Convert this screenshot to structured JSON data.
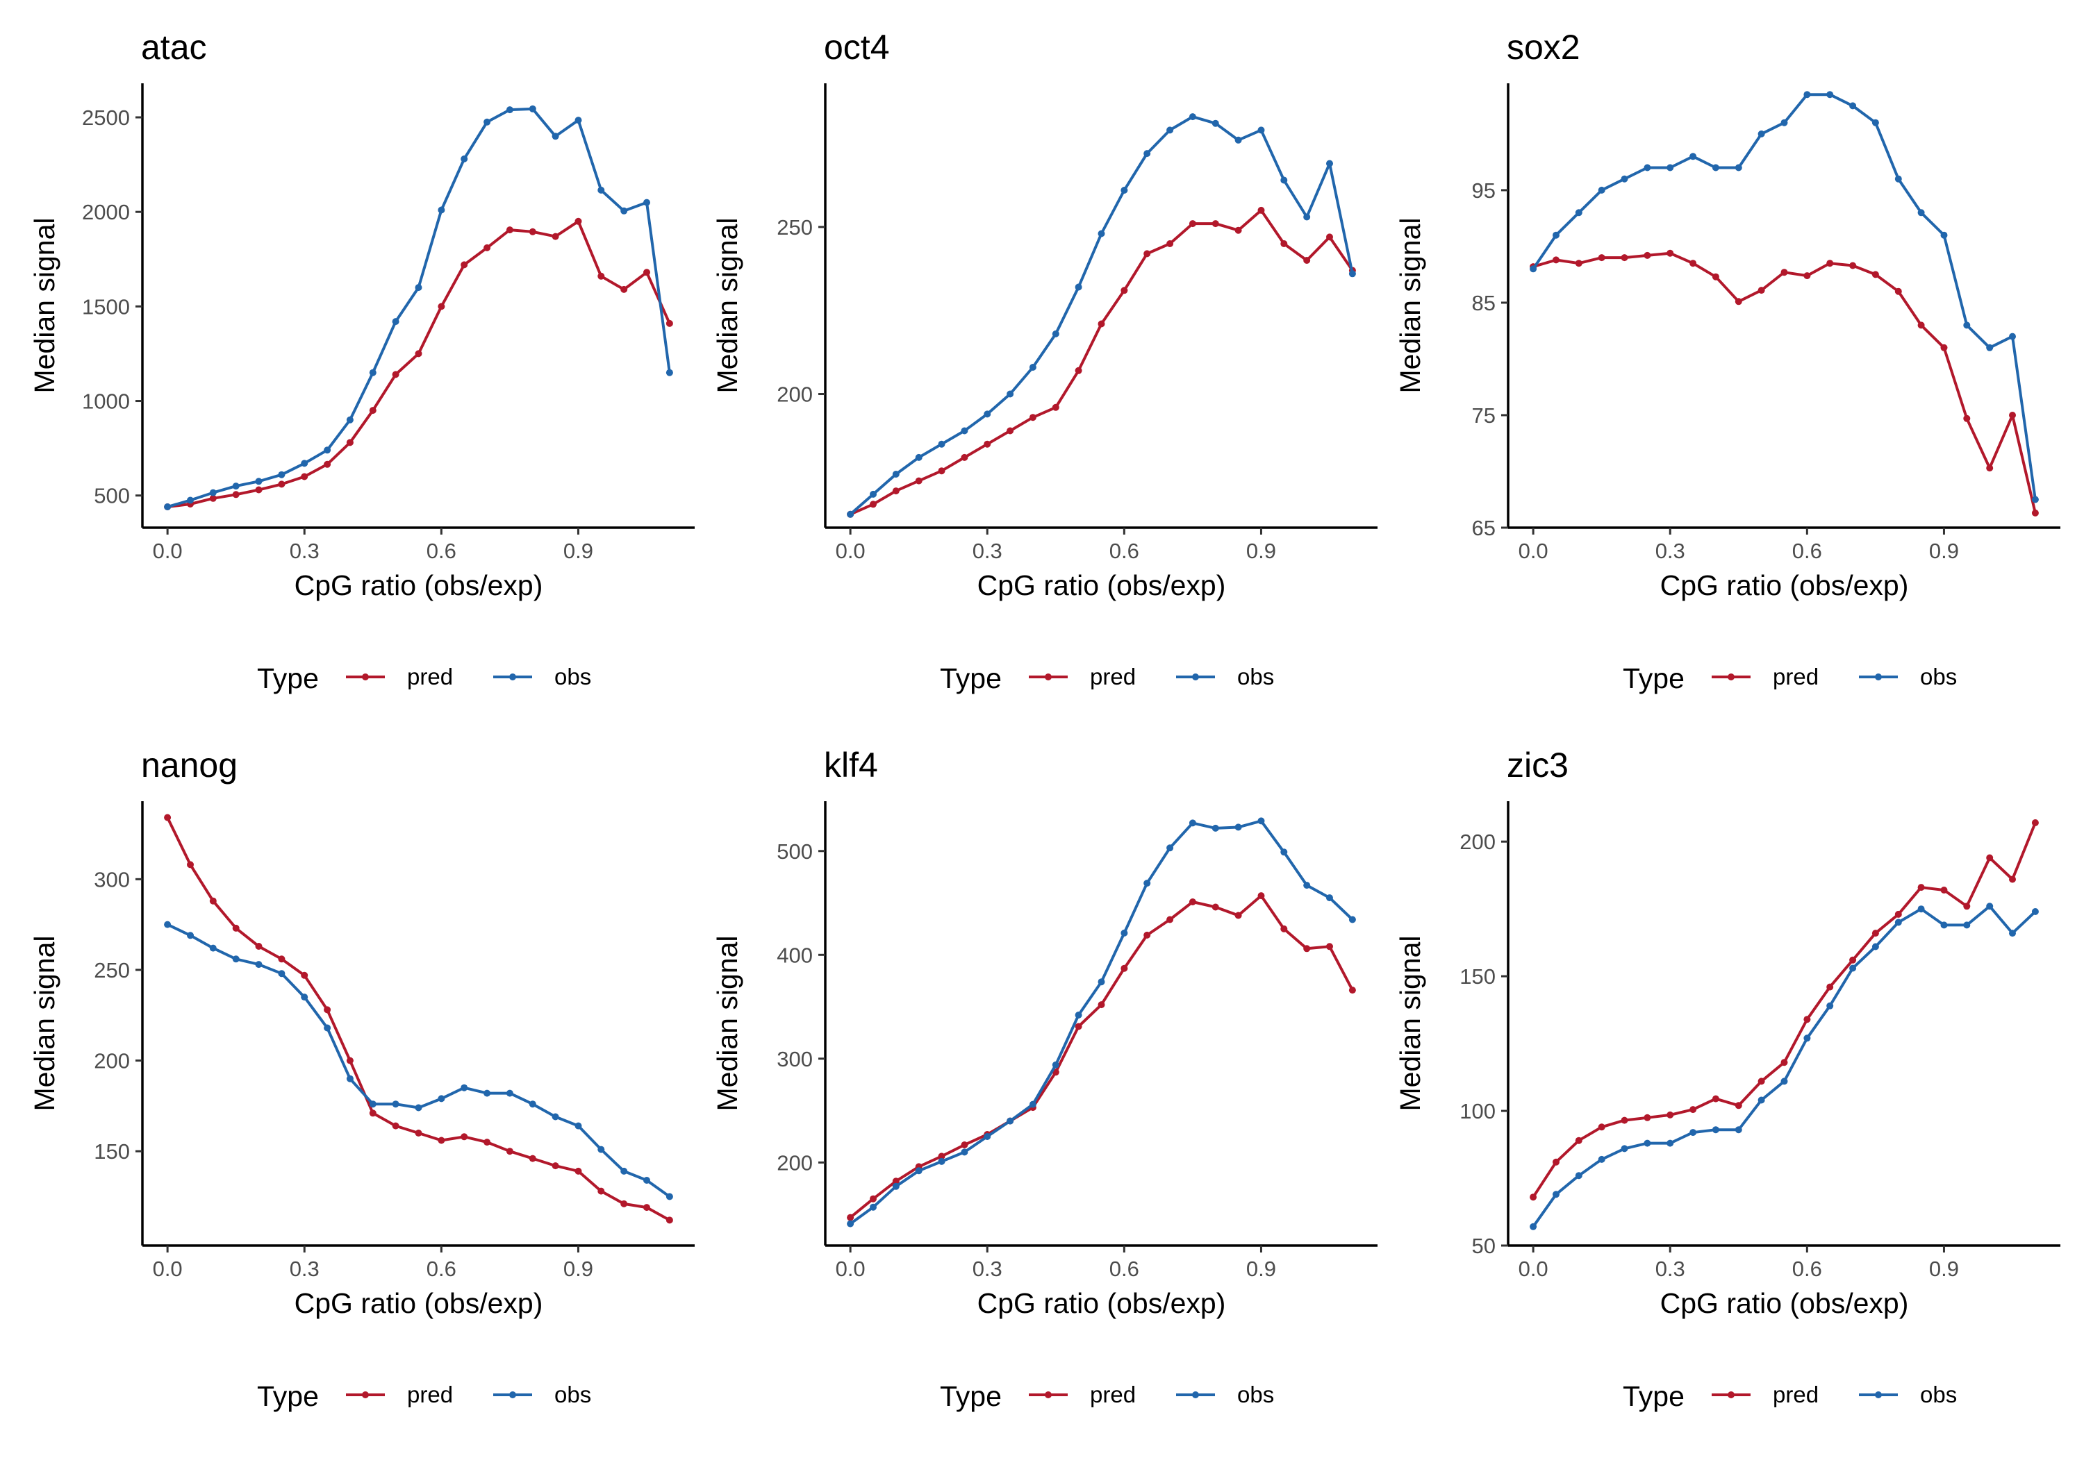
{
  "figure": {
    "series_colors": {
      "pred": "#b2182b",
      "obs": "#2166ac"
    },
    "legend": {
      "title": "Type",
      "items": [
        {
          "key": "pred",
          "label": "pred"
        },
        {
          "key": "obs",
          "label": "obs"
        }
      ]
    }
  },
  "chart_data": [
    {
      "type": "line",
      "title": "atac",
      "xlabel": "CpG ratio (obs/exp)",
      "ylabel": "Median signal",
      "xlim": [
        -0.055,
        1.155
      ],
      "ylim": [
        330,
        2680
      ],
      "xticks": [
        0.0,
        0.3,
        0.6,
        0.9
      ],
      "xtick_labels": [
        "0.0",
        "0.3",
        "0.6",
        "0.9"
      ],
      "yticks": [
        500,
        1000,
        1500,
        2000,
        2500
      ],
      "ytick_labels": [
        "500",
        "1000",
        "1500",
        "2000",
        "2500"
      ],
      "grid": false,
      "legend_position": "bottom",
      "x": [
        0.0,
        0.05,
        0.1,
        0.15,
        0.2,
        0.25,
        0.3,
        0.35,
        0.4,
        0.45,
        0.5,
        0.55,
        0.6,
        0.65,
        0.7,
        0.75,
        0.8,
        0.85,
        0.9,
        0.95,
        1.0,
        1.05,
        1.1
      ],
      "series": [
        {
          "name": "pred",
          "values": [
            440,
            455,
            485,
            505,
            530,
            560,
            600,
            665,
            780,
            950,
            1140,
            1250,
            1500,
            1720,
            1810,
            1905,
            1895,
            1870,
            1950,
            1660,
            1590,
            1680,
            1410
          ]
        },
        {
          "name": "obs",
          "values": [
            440,
            475,
            515,
            550,
            575,
            610,
            670,
            740,
            900,
            1150,
            1420,
            1600,
            2010,
            2280,
            2475,
            2540,
            2545,
            2400,
            2485,
            2115,
            2005,
            2050,
            1150
          ]
        }
      ]
    },
    {
      "type": "line",
      "title": "oct4",
      "xlabel": "CpG ratio (obs/exp)",
      "ylabel": "Median signal",
      "xlim": [
        -0.055,
        1.155
      ],
      "ylim": [
        160,
        293
      ],
      "xticks": [
        0.0,
        0.3,
        0.6,
        0.9
      ],
      "xtick_labels": [
        "0.0",
        "0.3",
        "0.6",
        "0.9"
      ],
      "yticks": [
        200,
        250
      ],
      "ytick_labels": [
        "200",
        "250"
      ],
      "grid": false,
      "legend_position": "bottom",
      "x": [
        0.0,
        0.05,
        0.1,
        0.15,
        0.2,
        0.25,
        0.3,
        0.35,
        0.4,
        0.45,
        0.5,
        0.55,
        0.6,
        0.65,
        0.7,
        0.75,
        0.8,
        0.85,
        0.9,
        0.95,
        1.0,
        1.05,
        1.1
      ],
      "series": [
        {
          "name": "pred",
          "values": [
            164,
            167,
            171,
            174,
            177,
            181,
            185,
            189,
            193,
            196,
            207,
            221,
            231,
            242,
            245,
            251,
            251,
            249,
            255,
            245,
            240,
            247,
            237
          ]
        },
        {
          "name": "obs",
          "values": [
            164,
            170,
            176,
            181,
            185,
            189,
            194,
            200,
            208,
            218,
            232,
            248,
            261,
            272,
            279,
            283,
            281,
            276,
            279,
            264,
            253,
            269,
            236
          ]
        }
      ]
    },
    {
      "type": "line",
      "title": "sox2",
      "xlabel": "CpG ratio (obs/exp)",
      "ylabel": "Median signal",
      "xlim": [
        -0.055,
        1.155
      ],
      "ylim": [
        65,
        104.5
      ],
      "xticks": [
        0.0,
        0.3,
        0.6,
        0.9
      ],
      "xtick_labels": [
        "0.0",
        "0.3",
        "0.6",
        "0.9"
      ],
      "yticks": [
        65,
        75,
        85,
        95
      ],
      "ytick_labels": [
        "65",
        "75",
        "85",
        "95"
      ],
      "grid": false,
      "legend_position": "bottom",
      "x": [
        0.0,
        0.05,
        0.1,
        0.15,
        0.2,
        0.25,
        0.3,
        0.35,
        0.4,
        0.45,
        0.5,
        0.55,
        0.6,
        0.65,
        0.7,
        0.75,
        0.8,
        0.85,
        0.9,
        0.95,
        1.0,
        1.05,
        1.1
      ],
      "series": [
        {
          "name": "pred",
          "values": [
            88.2,
            88.8,
            88.5,
            89.0,
            89.0,
            89.2,
            89.4,
            88.5,
            87.3,
            85.1,
            86.1,
            87.7,
            87.4,
            88.5,
            88.3,
            87.5,
            86.0,
            83.0,
            81.0,
            74.7,
            70.3,
            75.0,
            66.3
          ]
        },
        {
          "name": "obs",
          "values": [
            88.0,
            91.0,
            93.0,
            95.0,
            96.0,
            97.0,
            97.0,
            98.0,
            97.0,
            97.0,
            100.0,
            101.0,
            103.5,
            103.5,
            102.5,
            101.0,
            96.0,
            93.0,
            91.0,
            83.0,
            81.0,
            82.0,
            67.5
          ]
        }
      ]
    },
    {
      "type": "line",
      "title": "nanog",
      "xlabel": "CpG ratio (obs/exp)",
      "ylabel": "Median signal",
      "xlim": [
        -0.055,
        1.155
      ],
      "ylim": [
        98,
        343
      ],
      "xticks": [
        0.0,
        0.3,
        0.6,
        0.9
      ],
      "xtick_labels": [
        "0.0",
        "0.3",
        "0.6",
        "0.9"
      ],
      "yticks": [
        150,
        200,
        250,
        300
      ],
      "ytick_labels": [
        "150",
        "200",
        "250",
        "300"
      ],
      "grid": false,
      "legend_position": "bottom",
      "x": [
        0.0,
        0.05,
        0.1,
        0.15,
        0.2,
        0.25,
        0.3,
        0.35,
        0.4,
        0.45,
        0.5,
        0.55,
        0.6,
        0.65,
        0.7,
        0.75,
        0.8,
        0.85,
        0.9,
        0.95,
        1.0,
        1.05,
        1.1
      ],
      "series": [
        {
          "name": "pred",
          "values": [
            334,
            308,
            288,
            273,
            263,
            256,
            247,
            228,
            200,
            171,
            164,
            160,
            156,
            158,
            155,
            150,
            146,
            142,
            139,
            128,
            121,
            119,
            112
          ]
        },
        {
          "name": "obs",
          "values": [
            275,
            269,
            262,
            256,
            253,
            248,
            235,
            218,
            190,
            176,
            176,
            174,
            179,
            185,
            182,
            182,
            176,
            169,
            164,
            151,
            139,
            134,
            125
          ]
        }
      ]
    },
    {
      "type": "line",
      "title": "klf4",
      "xlabel": "CpG ratio (obs/exp)",
      "ylabel": "Median signal",
      "xlim": [
        -0.055,
        1.155
      ],
      "ylim": [
        120,
        548
      ],
      "xticks": [
        0.0,
        0.3,
        0.6,
        0.9
      ],
      "xtick_labels": [
        "0.0",
        "0.3",
        "0.6",
        "0.9"
      ],
      "yticks": [
        200,
        300,
        400,
        500
      ],
      "ytick_labels": [
        "200",
        "300",
        "400",
        "500"
      ],
      "grid": false,
      "legend_position": "bottom",
      "x": [
        0.0,
        0.05,
        0.1,
        0.15,
        0.2,
        0.25,
        0.3,
        0.35,
        0.4,
        0.45,
        0.5,
        0.55,
        0.6,
        0.65,
        0.7,
        0.75,
        0.8,
        0.85,
        0.9,
        0.95,
        1.0,
        1.05,
        1.1
      ],
      "series": [
        {
          "name": "pred",
          "values": [
            147,
            165,
            182,
            196,
            206,
            217,
            227,
            240,
            253,
            287,
            331,
            352,
            387,
            419,
            434,
            451,
            446,
            438,
            457,
            425,
            406,
            408,
            366
          ]
        },
        {
          "name": "obs",
          "values": [
            141,
            157,
            177,
            192,
            201,
            210,
            225,
            240,
            256,
            294,
            342,
            374,
            421,
            469,
            503,
            527,
            522,
            523,
            529,
            499,
            467,
            455,
            434
          ]
        }
      ]
    },
    {
      "type": "line",
      "title": "zic3",
      "xlabel": "CpG ratio (obs/exp)",
      "ylabel": "Median signal",
      "xlim": [
        -0.055,
        1.155
      ],
      "ylim": [
        50,
        215
      ],
      "xticks": [
        0.0,
        0.3,
        0.6,
        0.9
      ],
      "xtick_labels": [
        "0.0",
        "0.3",
        "0.6",
        "0.9"
      ],
      "yticks": [
        50,
        100,
        150,
        200
      ],
      "ytick_labels": [
        "50",
        "100",
        "150",
        "200"
      ],
      "grid": false,
      "legend_position": "bottom",
      "x": [
        0.0,
        0.05,
        0.1,
        0.15,
        0.2,
        0.25,
        0.3,
        0.35,
        0.4,
        0.45,
        0.5,
        0.55,
        0.6,
        0.65,
        0.7,
        0.75,
        0.8,
        0.85,
        0.9,
        0.95,
        1.0,
        1.05,
        1.1
      ],
      "series": [
        {
          "name": "pred",
          "values": [
            68,
            81,
            89,
            94,
            96.5,
            97.5,
            98.5,
            100.5,
            104.5,
            102,
            111,
            118,
            134,
            146,
            156,
            166,
            173,
            183,
            182,
            176,
            194,
            186,
            207
          ]
        },
        {
          "name": "obs",
          "values": [
            57,
            69,
            76,
            82,
            86,
            88,
            88,
            92,
            93,
            93,
            104,
            111,
            127,
            139,
            153,
            161,
            170,
            175,
            169,
            169,
            176,
            166,
            174
          ]
        }
      ]
    }
  ]
}
